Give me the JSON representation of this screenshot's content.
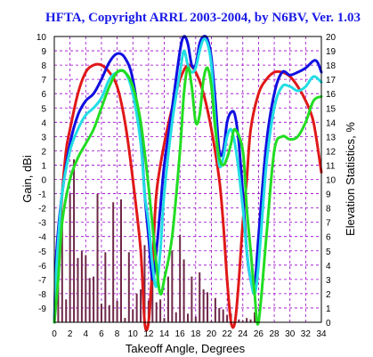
{
  "chart_data": {
    "type": "line",
    "title": "HFTA, Copyright ARRL 2003-2004, by N6BV, Ver. 1.03",
    "xlabel": "Takeoff Angle, Degrees",
    "ylabel": "Gain, dBi",
    "y2label": "Elevation Statistics, %",
    "xlim": [
      0,
      34
    ],
    "ylim": [
      -10,
      10
    ],
    "y2lim": [
      0,
      20
    ],
    "grid": true,
    "x_ticks": [
      0,
      2,
      4,
      6,
      8,
      10,
      12,
      14,
      16,
      18,
      20,
      22,
      24,
      26,
      28,
      30,
      32,
      34
    ],
    "y_ticks": [
      -9,
      -8,
      -7,
      -6,
      -5,
      -4,
      -3,
      -2,
      -1,
      0,
      1,
      2,
      3,
      4,
      5,
      6,
      7,
      8,
      9,
      10
    ],
    "y2_ticks": [
      0,
      1,
      2,
      3,
      4,
      5,
      6,
      7,
      8,
      9,
      10,
      11,
      12,
      13,
      14,
      15,
      16,
      17,
      18,
      19,
      20
    ],
    "colors": {
      "background": "#ffffff",
      "grid": "#9a00c8",
      "title": "#1a1ae6",
      "bars": "#6e2848"
    },
    "bars": {
      "axis": "right",
      "x": [
        0.5,
        1,
        1.5,
        2,
        2.5,
        3,
        3.5,
        4,
        4.5,
        5,
        5.5,
        6,
        6.5,
        7,
        7.5,
        8,
        8.5,
        9,
        9.5,
        10,
        10.5,
        11,
        11.5,
        12,
        12.5,
        13,
        13.5,
        14,
        14.5,
        15,
        15.5,
        16,
        16.5,
        17,
        17.5,
        18,
        18.5,
        19,
        19.5,
        20,
        20.5,
        21,
        21.5,
        22,
        22.5,
        23,
        23.5,
        24,
        24.5,
        25,
        25.5,
        26,
        26.5,
        27,
        27.5,
        28,
        28.5,
        29,
        29.5,
        30,
        30.5,
        31,
        31.5,
        32,
        32.5,
        33,
        33.5,
        34
      ],
      "values": [
        3.0,
        7.6,
        1.6,
        9.0,
        11.4,
        4.5,
        5.0,
        4.7,
        3.1,
        3.2,
        9.0,
        1.3,
        4.9,
        1.2,
        8.4,
        1.5,
        8.6,
        0.3,
        4.9,
        0.9,
        2.0,
        2.3,
        5.4,
        1.5,
        3.9,
        1.4,
        1.6,
        0.3,
        3.2,
        5.0,
        0.7,
        6.1,
        4.4,
        0.6,
        3.2,
        0.4,
        3.5,
        2.3,
        2.1,
        0.1,
        1.7,
        1.0,
        0.9,
        0.5,
        0.6,
        0.3,
        0.2,
        0.1,
        0.3,
        0.2,
        0.7,
        0.3,
        0.0,
        0.0,
        0.0,
        0.0,
        0.0,
        0.0,
        0.0,
        0.0,
        0.0,
        0.0,
        0.0,
        0.0,
        0.0,
        0.0,
        0.0,
        0.0
      ]
    },
    "series": [
      {
        "color": "#e01818",
        "x": [
          0,
          0.5,
          1,
          1.5,
          2,
          3,
          4,
          5,
          6,
          7,
          8,
          9,
          10,
          11,
          11.5,
          12,
          12.5,
          13,
          14,
          15,
          16,
          17,
          18,
          19,
          20,
          21,
          21.5,
          22,
          22.5,
          23,
          23.5,
          24,
          24.5,
          25,
          26,
          27,
          28,
          29,
          30,
          31,
          32,
          33,
          34
        ],
        "y": [
          -10,
          -5,
          -1,
          2,
          3.5,
          6,
          7.5,
          8,
          8,
          7.5,
          6.5,
          4,
          0,
          -5,
          -10,
          -10,
          -6,
          -1,
          2.5,
          5,
          7,
          8,
          7.5,
          6,
          3.5,
          0,
          -3,
          -7,
          -10,
          -10,
          -7,
          -3,
          0,
          3.5,
          6,
          7,
          7.5,
          7.5,
          7.2,
          6.5,
          5.5,
          4,
          0.5
        ]
      },
      {
        "color": "#1010e0",
        "x": [
          0,
          0.3,
          1,
          2,
          3,
          4,
          5,
          6,
          7,
          8,
          9,
          10,
          11,
          11.5,
          12,
          12.5,
          13,
          13.5,
          14,
          15,
          16,
          16.5,
          17,
          17.5,
          18,
          18.5,
          19,
          19.5,
          20,
          20.5,
          21,
          21.5,
          22,
          22.5,
          23,
          23.5,
          24,
          24.5,
          25,
          25.5,
          26,
          27,
          28,
          29,
          30,
          31,
          32,
          33,
          33.5,
          34
        ],
        "y": [
          -10,
          -5,
          -1,
          2.5,
          4.5,
          5.5,
          6,
          7,
          8.2,
          8.8,
          8.5,
          7,
          3,
          -1,
          -4,
          -7,
          -5,
          -2,
          1,
          5,
          9,
          10,
          9.5,
          8,
          8,
          9.5,
          10,
          9.8,
          8.5,
          5.5,
          2,
          2,
          4,
          4.7,
          4.5,
          2.5,
          -1,
          -5,
          -7,
          -7.5,
          -4,
          2.5,
          6,
          7.5,
          7.3,
          7.5,
          7.8,
          8.3,
          8.2,
          7.5
        ]
      },
      {
        "color": "#22dde4",
        "x": [
          0,
          0.3,
          1,
          2,
          3,
          4,
          5,
          6,
          7,
          8,
          9,
          10,
          11,
          11.5,
          12,
          12.5,
          13,
          13.5,
          14,
          15,
          16,
          16.5,
          17,
          17.5,
          18,
          18.5,
          19,
          19.5,
          20,
          20.5,
          21,
          21.5,
          22,
          22.5,
          23,
          23.5,
          24,
          24.5,
          25,
          25.5,
          26,
          27,
          28,
          29,
          30,
          31,
          32,
          33,
          34
        ],
        "y": [
          -10,
          -6,
          -1,
          2,
          3.5,
          4.5,
          5,
          5.7,
          7,
          7.5,
          7.5,
          6,
          2.5,
          -1,
          -3,
          -6,
          -7.5,
          -5,
          -1,
          4,
          7.5,
          9,
          8,
          7.5,
          7.8,
          9,
          9.8,
          9.5,
          8,
          4,
          1,
          1.5,
          3,
          3.5,
          2.5,
          0.5,
          -2,
          -5,
          -7,
          -8,
          -6,
          1,
          5,
          6.5,
          6.5,
          6.2,
          6.5,
          7.2,
          6.8
        ]
      },
      {
        "color": "#22dd22",
        "x": [
          0,
          0.5,
          1,
          2,
          3,
          4,
          5,
          6,
          7,
          8,
          9,
          10,
          11,
          12,
          13,
          13.5,
          14,
          15,
          16,
          16.5,
          17,
          17.5,
          18,
          18.5,
          19,
          19.5,
          20,
          20.5,
          21,
          21.5,
          22,
          22.5,
          23,
          24,
          24.5,
          25,
          25.5,
          26,
          27,
          28,
          29,
          30,
          31,
          32,
          33,
          34
        ],
        "y": [
          -10,
          -7,
          -3,
          0,
          1.5,
          2.5,
          3.5,
          5,
          6.5,
          7.5,
          7.5,
          6.5,
          4,
          -0.5,
          -6,
          -8,
          -7,
          -4,
          2,
          6,
          7.8,
          6.5,
          4,
          4.5,
          7,
          7.8,
          6.5,
          3.5,
          1.5,
          1,
          1.5,
          2.5,
          3.5,
          2,
          -2,
          -5,
          -8,
          -10,
          -4,
          2,
          3,
          2.8,
          3,
          4,
          5.5,
          5.8
        ]
      }
    ]
  }
}
